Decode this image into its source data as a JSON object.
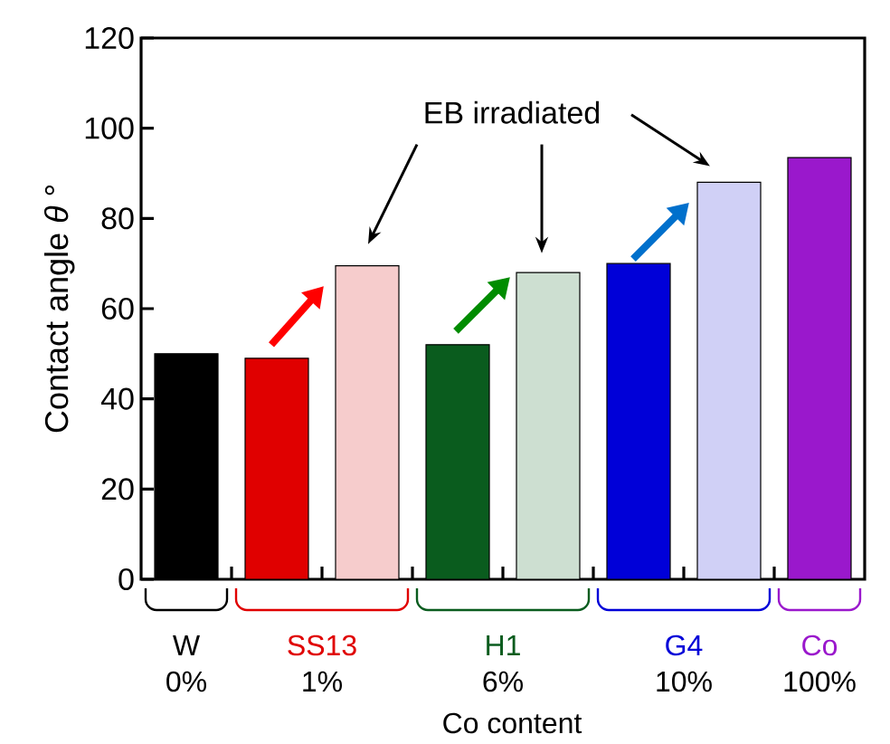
{
  "chart_data": {
    "type": "bar",
    "ylabel": "Contact angle  *θ* °",
    "xlabel": "Co content",
    "categories": [
      null,
      null,
      null,
      null,
      null,
      null,
      null,
      null
    ],
    "values": [
      50,
      49,
      69.5,
      52,
      68,
      70,
      88,
      93.5
    ],
    "colors": [
      "#000000",
      "#e00000",
      "#f6cccc",
      "#0a5c1e",
      "#cddfd1",
      "#0000d8",
      "#d0d0f6",
      "#9a18cc"
    ],
    "ylim": [
      0,
      120
    ],
    "yticks": [
      0,
      20,
      40,
      60,
      80,
      100,
      120
    ],
    "annotations": [
      "EB irradiated",
      "W",
      "0%",
      "SS13",
      "1%",
      "H1",
      "6%",
      "G4",
      "10%",
      "Co",
      "100%"
    ]
  }
}
